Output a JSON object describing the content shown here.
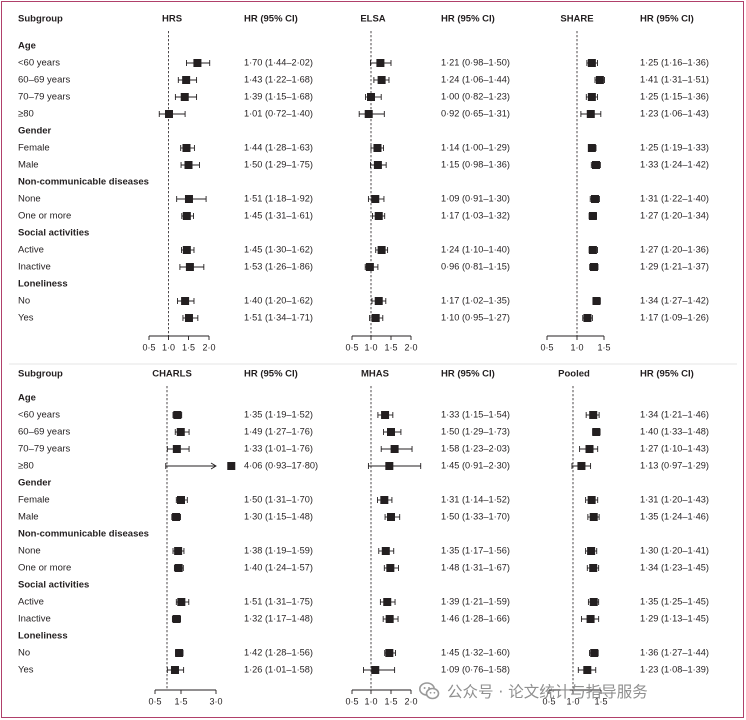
{
  "watermark": {
    "text": "公众号 · 论文统计与指导服务",
    "icon": "wechat-icon"
  },
  "colors": {
    "frame": "#b0406a",
    "text": "#231f20",
    "marker": "#231f20",
    "muted": "#8f8f8f"
  },
  "chart_data": {
    "type": "forest",
    "measure": "HR (95% CI)",
    "reference_value": 1.0,
    "row_labels": [
      {
        "text": "Age",
        "group": true
      },
      {
        "text": "<60 years",
        "group": false
      },
      {
        "text": "60–69 years",
        "group": false
      },
      {
        "text": "70–79 years",
        "group": false
      },
      {
        "text": "≥80",
        "group": false
      },
      {
        "text": "Gender",
        "group": true
      },
      {
        "text": "Female",
        "group": false
      },
      {
        "text": "Male",
        "group": false
      },
      {
        "text": "Non-communicable diseases",
        "group": true
      },
      {
        "text": "None",
        "group": false
      },
      {
        "text": "One or more",
        "group": false
      },
      {
        "text": "Social activities",
        "group": true
      },
      {
        "text": "Active",
        "group": false
      },
      {
        "text": "Inactive",
        "group": false
      },
      {
        "text": "Loneliness",
        "group": true
      },
      {
        "text": "No",
        "group": false
      },
      {
        "text": "Yes",
        "group": false
      }
    ],
    "panels": [
      {
        "title": "HRS",
        "subgroup_header": "Subgroup",
        "hr_header": "HR (95% CI)",
        "ticks": [
          0.5,
          1.0,
          1.5,
          2.0
        ],
        "tick_labels": [
          "0·5",
          "1·0",
          "1·5",
          "2·0"
        ],
        "rows": [
          null,
          {
            "hr": 1.7,
            "lo": 1.44,
            "hi": 2.02,
            "label": "1·70 (1·44–2·02)"
          },
          {
            "hr": 1.43,
            "lo": 1.22,
            "hi": 1.68,
            "label": "1·43 (1·22–1·68)"
          },
          {
            "hr": 1.39,
            "lo": 1.15,
            "hi": 1.68,
            "label": "1·39 (1·15–1·68)"
          },
          {
            "hr": 1.01,
            "lo": 0.72,
            "hi": 1.4,
            "label": "1·01 (0·72–1·40)"
          },
          null,
          {
            "hr": 1.44,
            "lo": 1.28,
            "hi": 1.63,
            "label": "1·44 (1·28–1·63)"
          },
          {
            "hr": 1.5,
            "lo": 1.29,
            "hi": 1.75,
            "label": "1·50 (1·29–1·75)"
          },
          null,
          {
            "hr": 1.51,
            "lo": 1.18,
            "hi": 1.92,
            "label": "1·51 (1·18–1·92)"
          },
          {
            "hr": 1.45,
            "lo": 1.31,
            "hi": 1.61,
            "label": "1·45 (1·31–1·61)"
          },
          null,
          {
            "hr": 1.45,
            "lo": 1.3,
            "hi": 1.62,
            "label": "1·45 (1·30–1·62)"
          },
          {
            "hr": 1.53,
            "lo": 1.26,
            "hi": 1.86,
            "label": "1·53 (1·26–1·86)"
          },
          null,
          {
            "hr": 1.4,
            "lo": 1.2,
            "hi": 1.62,
            "label": "1·40 (1·20–1·62)"
          },
          {
            "hr": 1.51,
            "lo": 1.34,
            "hi": 1.71,
            "label": "1·51 (1·34–1·71)"
          }
        ]
      },
      {
        "title": "ELSA",
        "hr_header": "HR (95% CI)",
        "ticks": [
          0.5,
          1.0,
          1.5,
          2.0
        ],
        "tick_labels": [
          "0·5",
          "1·0",
          "1·5",
          "2·0"
        ],
        "rows": [
          null,
          {
            "hr": 1.21,
            "lo": 0.98,
            "hi": 1.5,
            "label": "1·21 (0·98–1·50)"
          },
          {
            "hr": 1.24,
            "lo": 1.06,
            "hi": 1.44,
            "label": "1·24 (1·06–1·44)"
          },
          {
            "hr": 1.0,
            "lo": 0.82,
            "hi": 1.23,
            "label": "1·00 (0·82–1·23)"
          },
          {
            "hr": 0.92,
            "lo": 0.65,
            "hi": 1.31,
            "label": "0·92 (0·65–1·31)"
          },
          null,
          {
            "hr": 1.14,
            "lo": 1.0,
            "hi": 1.29,
            "label": "1·14 (1·00–1·29)"
          },
          {
            "hr": 1.15,
            "lo": 0.98,
            "hi": 1.36,
            "label": "1·15 (0·98–1·36)"
          },
          null,
          {
            "hr": 1.09,
            "lo": 0.91,
            "hi": 1.3,
            "label": "1·09 (0·91–1·30)"
          },
          {
            "hr": 1.17,
            "lo": 1.03,
            "hi": 1.32,
            "label": "1·17 (1·03–1·32)"
          },
          null,
          {
            "hr": 1.24,
            "lo": 1.1,
            "hi": 1.4,
            "label": "1·24 (1·10–1·40)"
          },
          {
            "hr": 0.96,
            "lo": 0.81,
            "hi": 1.15,
            "label": "0·96 (0·81–1·15)"
          },
          null,
          {
            "hr": 1.17,
            "lo": 1.02,
            "hi": 1.35,
            "label": "1·17 (1·02–1·35)"
          },
          {
            "hr": 1.1,
            "lo": 0.95,
            "hi": 1.27,
            "label": "1·10 (0·95–1·27)"
          }
        ]
      },
      {
        "title": "SHARE",
        "hr_header": "HR (95% CI)",
        "ticks": [
          0.5,
          1.0,
          1.5
        ],
        "tick_labels": [
          "0·5",
          "1·0",
          "1·5"
        ],
        "rows": [
          null,
          {
            "hr": 1.25,
            "lo": 1.16,
            "hi": 1.36,
            "label": "1·25 (1·16–1·36)"
          },
          {
            "hr": 1.41,
            "lo": 1.31,
            "hi": 1.51,
            "label": "1·41 (1·31–1·51)"
          },
          {
            "hr": 1.25,
            "lo": 1.15,
            "hi": 1.36,
            "label": "1·25 (1·15–1·36)"
          },
          {
            "hr": 1.23,
            "lo": 1.06,
            "hi": 1.43,
            "label": "1·23 (1·06–1·43)"
          },
          null,
          {
            "hr": 1.25,
            "lo": 1.19,
            "hi": 1.33,
            "label": "1·25 (1·19–1·33)"
          },
          {
            "hr": 1.33,
            "lo": 1.24,
            "hi": 1.42,
            "label": "1·33 (1·24–1·42)"
          },
          null,
          {
            "hr": 1.31,
            "lo": 1.22,
            "hi": 1.4,
            "label": "1·31 (1·22–1·40)"
          },
          {
            "hr": 1.27,
            "lo": 1.2,
            "hi": 1.34,
            "label": "1·27 (1·20–1·34)"
          },
          null,
          {
            "hr": 1.27,
            "lo": 1.2,
            "hi": 1.36,
            "label": "1·27 (1·20–1·36)"
          },
          {
            "hr": 1.29,
            "lo": 1.21,
            "hi": 1.37,
            "label": "1·29 (1·21–1·37)"
          },
          null,
          {
            "hr": 1.34,
            "lo": 1.27,
            "hi": 1.42,
            "label": "1·34 (1·27–1·42)"
          },
          {
            "hr": 1.17,
            "lo": 1.09,
            "hi": 1.26,
            "label": "1·17 (1·09–1·26)"
          }
        ]
      },
      {
        "title": "CHARLS",
        "subgroup_header": "Subgroup",
        "hr_header": "HR (95% CI)",
        "ticks": [
          0.5,
          1.5,
          3.0
        ],
        "tick_labels": [
          "0·5",
          "1·5",
          "3·0"
        ],
        "rows": [
          null,
          {
            "hr": 1.35,
            "lo": 1.19,
            "hi": 1.52,
            "label": "1·35 (1·19–1·52)"
          },
          {
            "hr": 1.49,
            "lo": 1.27,
            "hi": 1.76,
            "label": "1·49 (1·27–1·76)"
          },
          {
            "hr": 1.33,
            "lo": 1.01,
            "hi": 1.76,
            "label": "1·33 (1·01–1·76)"
          },
          {
            "hr": 4.06,
            "lo": 0.93,
            "hi": 17.8,
            "label": "4·06 (0·93–17·80)"
          },
          null,
          {
            "hr": 1.5,
            "lo": 1.31,
            "hi": 1.7,
            "label": "1·50 (1·31–1·70)"
          },
          {
            "hr": 1.3,
            "lo": 1.15,
            "hi": 1.48,
            "label": "1·30 (1·15–1·48)"
          },
          null,
          {
            "hr": 1.38,
            "lo": 1.19,
            "hi": 1.59,
            "label": "1·38 (1·19–1·59)"
          },
          {
            "hr": 1.4,
            "lo": 1.24,
            "hi": 1.57,
            "label": "1·40 (1·24–1·57)"
          },
          null,
          {
            "hr": 1.51,
            "lo": 1.31,
            "hi": 1.75,
            "label": "1·51 (1·31–1·75)"
          },
          {
            "hr": 1.32,
            "lo": 1.17,
            "hi": 1.48,
            "label": "1·32 (1·17–1·48)"
          },
          null,
          {
            "hr": 1.42,
            "lo": 1.28,
            "hi": 1.56,
            "label": "1·42 (1·28–1·56)"
          },
          {
            "hr": 1.26,
            "lo": 1.01,
            "hi": 1.58,
            "label": "1·26 (1·01–1·58)"
          }
        ]
      },
      {
        "title": "MHAS",
        "hr_header": "HR (95% CI)",
        "ticks": [
          0.5,
          1.0,
          1.5,
          2.0
        ],
        "tick_labels": [
          "0·5",
          "1·0",
          "1·5",
          "2·0"
        ],
        "rows": [
          null,
          {
            "hr": 1.33,
            "lo": 1.15,
            "hi": 1.54,
            "label": "1·33 (1·15–1·54)"
          },
          {
            "hr": 1.5,
            "lo": 1.29,
            "hi": 1.73,
            "label": "1·50 (1·29–1·73)"
          },
          {
            "hr": 1.58,
            "lo": 1.23,
            "hi": 2.03,
            "label": "1·58 (1·23–2·03)"
          },
          {
            "hr": 1.45,
            "lo": 0.91,
            "hi": 2.3,
            "label": "1·45 (0·91–2·30)"
          },
          null,
          {
            "hr": 1.31,
            "lo": 1.14,
            "hi": 1.52,
            "label": "1·31 (1·14–1·52)"
          },
          {
            "hr": 1.5,
            "lo": 1.33,
            "hi": 1.7,
            "label": "1·50 (1·33–1·70)"
          },
          null,
          {
            "hr": 1.35,
            "lo": 1.17,
            "hi": 1.56,
            "label": "1·35 (1·17–1·56)"
          },
          {
            "hr": 1.48,
            "lo": 1.31,
            "hi": 1.67,
            "label": "1·48 (1·31–1·67)"
          },
          null,
          {
            "hr": 1.39,
            "lo": 1.21,
            "hi": 1.59,
            "label": "1·39 (1·21–1·59)"
          },
          {
            "hr": 1.46,
            "lo": 1.28,
            "hi": 1.66,
            "label": "1·46 (1·28–1·66)"
          },
          null,
          {
            "hr": 1.45,
            "lo": 1.32,
            "hi": 1.6,
            "label": "1·45 (1·32–1·60)"
          },
          {
            "hr": 1.09,
            "lo": 0.76,
            "hi": 1.58,
            "label": "1·09 (0·76–1·58)"
          }
        ]
      },
      {
        "title": "Pooled",
        "hr_header": "HR (95% CI)",
        "ticks": [
          0.5,
          1.0,
          1.5
        ],
        "tick_labels": [
          "0·5",
          "1·0",
          "1·5"
        ],
        "rows": [
          null,
          {
            "hr": 1.34,
            "lo": 1.21,
            "hi": 1.46,
            "label": "1·34 (1·21–1·46)"
          },
          {
            "hr": 1.4,
            "lo": 1.33,
            "hi": 1.48,
            "label": "1·40 (1·33–1·48)"
          },
          {
            "hr": 1.27,
            "lo": 1.1,
            "hi": 1.43,
            "label": "1·27 (1·10–1·43)"
          },
          {
            "hr": 1.13,
            "lo": 0.97,
            "hi": 1.29,
            "label": "1·13 (0·97–1·29)"
          },
          null,
          {
            "hr": 1.31,
            "lo": 1.2,
            "hi": 1.43,
            "label": "1·31 (1·20–1·43)"
          },
          {
            "hr": 1.35,
            "lo": 1.24,
            "hi": 1.46,
            "label": "1·35 (1·24–1·46)"
          },
          null,
          {
            "hr": 1.3,
            "lo": 1.2,
            "hi": 1.41,
            "label": "1·30 (1·20–1·41)"
          },
          {
            "hr": 1.34,
            "lo": 1.23,
            "hi": 1.45,
            "label": "1·34 (1·23–1·45)"
          },
          null,
          {
            "hr": 1.35,
            "lo": 1.25,
            "hi": 1.45,
            "label": "1·35 (1·25–1·45)"
          },
          {
            "hr": 1.29,
            "lo": 1.13,
            "hi": 1.45,
            "label": "1·29 (1·13–1·45)"
          },
          null,
          {
            "hr": 1.36,
            "lo": 1.27,
            "hi": 1.44,
            "label": "1·36 (1·27–1·44)"
          },
          {
            "hr": 1.23,
            "lo": 1.08,
            "hi": 1.39,
            "label": "1·23 (1·08–1·39)"
          }
        ]
      }
    ]
  }
}
